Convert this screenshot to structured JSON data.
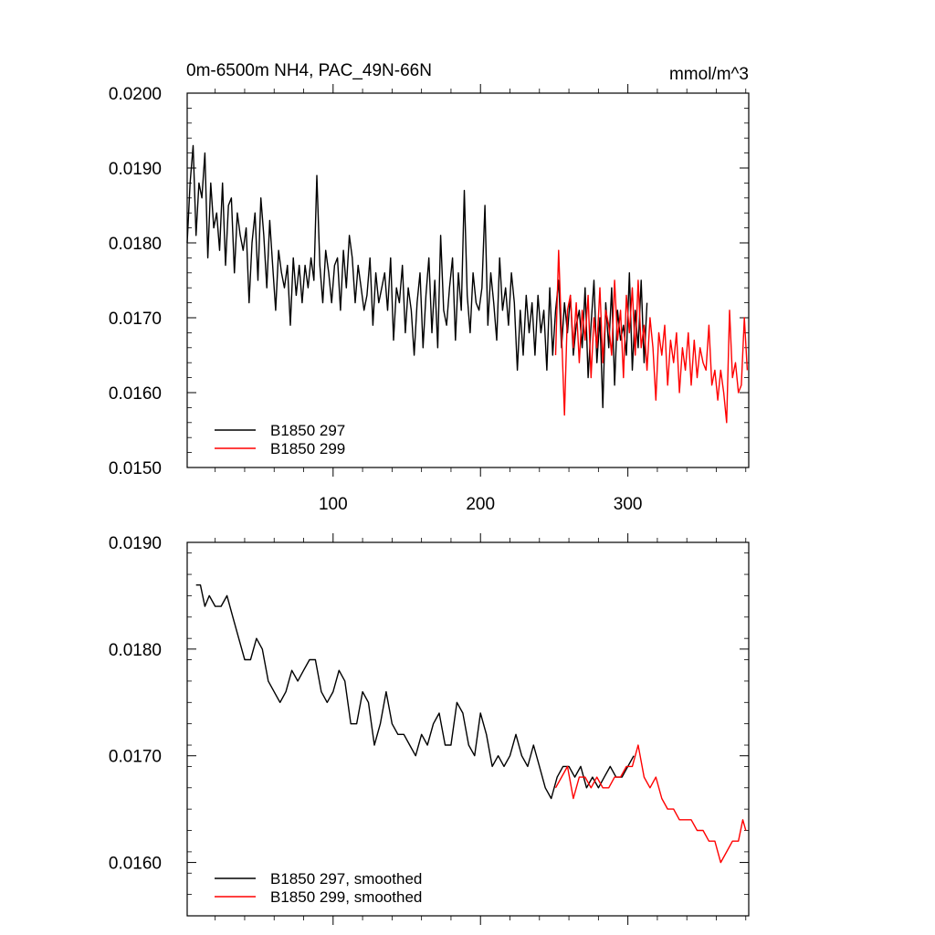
{
  "chart_data": [
    {
      "type": "line",
      "title": "0m-6500m NH4, PAC_49N-66N",
      "units": "mmol/m^3",
      "xlabel": "",
      "ylabel": "",
      "xlim": [
        1,
        382
      ],
      "ylim": [
        0.015,
        0.02
      ],
      "y_ticks": [
        "0.0150",
        "0.0160",
        "0.0170",
        "0.0180",
        "0.0190",
        "0.0200"
      ],
      "x_ticks": [
        "100",
        "200",
        "300"
      ],
      "legend_position": "bottom-left",
      "series": [
        {
          "name": "B1850 297",
          "color": "#000000",
          "x": [
            1,
            3,
            5,
            7,
            9,
            11,
            13,
            15,
            17,
            19,
            21,
            23,
            25,
            27,
            29,
            31,
            33,
            35,
            37,
            39,
            41,
            43,
            45,
            47,
            49,
            51,
            53,
            55,
            57,
            59,
            61,
            63,
            65,
            67,
            69,
            71,
            73,
            75,
            77,
            79,
            81,
            83,
            85,
            87,
            89,
            91,
            93,
            95,
            97,
            99,
            101,
            103,
            105,
            107,
            109,
            111,
            113,
            115,
            117,
            119,
            121,
            123,
            125,
            127,
            129,
            131,
            133,
            135,
            137,
            139,
            141,
            143,
            145,
            147,
            149,
            151,
            153,
            155,
            157,
            159,
            161,
            163,
            165,
            167,
            169,
            171,
            173,
            175,
            177,
            179,
            181,
            183,
            185,
            187,
            189,
            191,
            193,
            195,
            197,
            199,
            201,
            203,
            205,
            207,
            209,
            211,
            213,
            215,
            217,
            219,
            221,
            223,
            225,
            227,
            229,
            231,
            233,
            235,
            237,
            239,
            241,
            243,
            245,
            247,
            249,
            251,
            253,
            255,
            257,
            259,
            261,
            263,
            265,
            267,
            269,
            271,
            273,
            275,
            277,
            279,
            281,
            283,
            285,
            287,
            289,
            291,
            293,
            295,
            297,
            299,
            301,
            303,
            305,
            307,
            309,
            311,
            313
          ],
          "values": [
            0.018,
            0.0188,
            0.0193,
            0.0181,
            0.0188,
            0.0186,
            0.0192,
            0.0178,
            0.0188,
            0.0182,
            0.0184,
            0.0179,
            0.0188,
            0.0177,
            0.0185,
            0.0186,
            0.0176,
            0.0184,
            0.0181,
            0.0179,
            0.0182,
            0.0172,
            0.018,
            0.0184,
            0.0175,
            0.0186,
            0.0181,
            0.0174,
            0.0183,
            0.0177,
            0.0171,
            0.0179,
            0.0176,
            0.0174,
            0.0177,
            0.0169,
            0.0178,
            0.0173,
            0.0177,
            0.0172,
            0.0177,
            0.0174,
            0.0178,
            0.0175,
            0.0189,
            0.0177,
            0.0172,
            0.0179,
            0.0176,
            0.0172,
            0.0177,
            0.0178,
            0.0171,
            0.0179,
            0.0174,
            0.0181,
            0.0178,
            0.0172,
            0.0177,
            0.0174,
            0.0171,
            0.0173,
            0.0178,
            0.0169,
            0.0176,
            0.0172,
            0.0174,
            0.0176,
            0.0171,
            0.0178,
            0.0167,
            0.0174,
            0.0172,
            0.0177,
            0.0168,
            0.0174,
            0.0171,
            0.0165,
            0.0172,
            0.0176,
            0.0166,
            0.0173,
            0.0178,
            0.0168,
            0.0175,
            0.0166,
            0.0181,
            0.0171,
            0.0169,
            0.0174,
            0.0178,
            0.0167,
            0.0176,
            0.0171,
            0.0187,
            0.0173,
            0.0168,
            0.0176,
            0.0172,
            0.0171,
            0.0174,
            0.0185,
            0.0169,
            0.0176,
            0.0172,
            0.0167,
            0.0178,
            0.0171,
            0.0174,
            0.0169,
            0.0176,
            0.0172,
            0.0163,
            0.0171,
            0.0165,
            0.0173,
            0.0168,
            0.0172,
            0.0165,
            0.0173,
            0.0168,
            0.0171,
            0.0163,
            0.0174,
            0.0165,
            0.0171,
            0.0175,
            0.0166,
            0.0172,
            0.0168,
            0.0173,
            0.0165,
            0.0169,
            0.0171,
            0.0166,
            0.0174,
            0.0162,
            0.0169,
            0.0175,
            0.0164,
            0.017,
            0.0158,
            0.0172,
            0.0166,
            0.0174,
            0.0161,
            0.0171,
            0.0167,
            0.0169,
            0.0165,
            0.0176,
            0.0163,
            0.0171,
            0.0166,
            0.0175,
            0.0164,
            0.0172
          ]
        },
        {
          "name": "B1850 299",
          "color": "#ff0000",
          "x": [
            251,
            253,
            255,
            257,
            259,
            261,
            263,
            265,
            267,
            269,
            271,
            273,
            275,
            277,
            279,
            281,
            283,
            285,
            287,
            289,
            291,
            293,
            295,
            297,
            299,
            301,
            303,
            305,
            307,
            309,
            311,
            313,
            315,
            317,
            319,
            321,
            323,
            325,
            327,
            329,
            331,
            333,
            335,
            337,
            339,
            341,
            343,
            345,
            347,
            349,
            351,
            353,
            355,
            357,
            359,
            361,
            363,
            365,
            367,
            369,
            371,
            373,
            375,
            377,
            379,
            381
          ],
          "values": [
            0.0165,
            0.0179,
            0.0168,
            0.0157,
            0.0171,
            0.0173,
            0.0166,
            0.0172,
            0.0164,
            0.0171,
            0.0167,
            0.0173,
            0.0162,
            0.017,
            0.0166,
            0.0174,
            0.0164,
            0.0171,
            0.0169,
            0.0165,
            0.0175,
            0.0167,
            0.0171,
            0.0162,
            0.0173,
            0.0168,
            0.0174,
            0.0165,
            0.0175,
            0.0166,
            0.0169,
            0.0163,
            0.017,
            0.0166,
            0.0159,
            0.0168,
            0.0165,
            0.0169,
            0.0161,
            0.0167,
            0.0164,
            0.0168,
            0.016,
            0.0166,
            0.0163,
            0.0168,
            0.0161,
            0.0167,
            0.0162,
            0.0166,
            0.0164,
            0.0163,
            0.0169,
            0.0161,
            0.0163,
            0.0159,
            0.0163,
            0.016,
            0.0156,
            0.0171,
            0.0162,
            0.0164,
            0.016,
            0.0161,
            0.017,
            0.0163
          ]
        }
      ]
    },
    {
      "type": "line",
      "title": "",
      "xlabel": "",
      "ylabel": "",
      "xlim": [
        1,
        382
      ],
      "ylim": [
        0.0155,
        0.019
      ],
      "y_ticks": [
        "0.0160",
        "0.0170",
        "0.0180",
        "0.0190"
      ],
      "legend_position": "bottom-left",
      "series": [
        {
          "name": "B1850 297, smoothed",
          "color": "#000000",
          "x": [
            7,
            10,
            13,
            16,
            20,
            24,
            28,
            32,
            36,
            40,
            44,
            48,
            52,
            56,
            60,
            64,
            68,
            72,
            76,
            80,
            84,
            88,
            92,
            96,
            100,
            104,
            108,
            112,
            116,
            120,
            124,
            128,
            132,
            136,
            140,
            144,
            148,
            152,
            156,
            160,
            164,
            168,
            172,
            176,
            180,
            184,
            188,
            192,
            196,
            200,
            204,
            208,
            212,
            216,
            220,
            224,
            228,
            232,
            236,
            240,
            244,
            248,
            252,
            256,
            260,
            264,
            268,
            272,
            276,
            280,
            284,
            288,
            292,
            296,
            300,
            304
          ],
          "values": [
            0.0186,
            0.0186,
            0.0184,
            0.0185,
            0.0184,
            0.0184,
            0.0185,
            0.0183,
            0.0181,
            0.0179,
            0.0179,
            0.0181,
            0.018,
            0.0177,
            0.0176,
            0.0175,
            0.0176,
            0.0178,
            0.0177,
            0.0178,
            0.0179,
            0.0179,
            0.0176,
            0.0175,
            0.0176,
            0.0178,
            0.0177,
            0.0173,
            0.0173,
            0.0176,
            0.0175,
            0.0171,
            0.0173,
            0.0176,
            0.0173,
            0.0172,
            0.0172,
            0.0171,
            0.017,
            0.0172,
            0.0171,
            0.0173,
            0.0174,
            0.0171,
            0.0171,
            0.0175,
            0.0174,
            0.0171,
            0.017,
            0.0174,
            0.0172,
            0.0169,
            0.017,
            0.0169,
            0.017,
            0.0172,
            0.017,
            0.0169,
            0.0171,
            0.0169,
            0.0167,
            0.0166,
            0.0168,
            0.0169,
            0.0169,
            0.0168,
            0.0169,
            0.0167,
            0.0168,
            0.0167,
            0.0168,
            0.0169,
            0.0168,
            0.0168,
            0.0169,
            0.017
          ]
        },
        {
          "name": "B1850 299, smoothed",
          "color": "#ff0000",
          "x": [
            251,
            255,
            259,
            263,
            267,
            271,
            275,
            279,
            283,
            287,
            291,
            295,
            299,
            303,
            307,
            311,
            315,
            319,
            323,
            327,
            331,
            335,
            339,
            343,
            347,
            351,
            355,
            359,
            363,
            367,
            371,
            375,
            378,
            380
          ],
          "values": [
            0.0167,
            0.0168,
            0.0169,
            0.0166,
            0.0168,
            0.0168,
            0.0167,
            0.0168,
            0.0167,
            0.0167,
            0.0168,
            0.0168,
            0.0169,
            0.0169,
            0.0171,
            0.0168,
            0.0167,
            0.0168,
            0.0166,
            0.0165,
            0.0165,
            0.0164,
            0.0164,
            0.0164,
            0.0163,
            0.0163,
            0.0162,
            0.0162,
            0.016,
            0.0161,
            0.0162,
            0.0162,
            0.0164,
            0.0163
          ]
        }
      ]
    }
  ]
}
